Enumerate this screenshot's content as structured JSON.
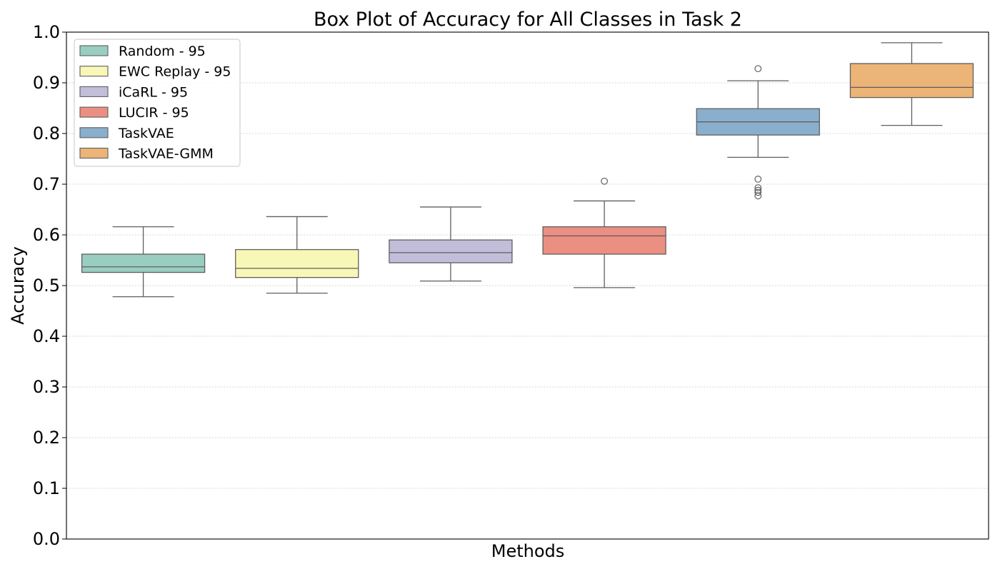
{
  "chart_data": {
    "type": "box",
    "title": "Box Plot of Accuracy for All Classes in Task 2",
    "xlabel": "Methods",
    "ylabel": "Accuracy",
    "ylim": [
      0.0,
      1.0
    ],
    "yticks": [
      "0.0",
      "0.1",
      "0.2",
      "0.3",
      "0.4",
      "0.5",
      "0.6",
      "0.7",
      "0.8",
      "0.9",
      "1.0"
    ],
    "grid": "horizontal-dotted",
    "legend_position": "top-left",
    "series": [
      {
        "name": "Random - 95",
        "color": "#99cdc0",
        "whisker_low": 0.478,
        "q1": 0.526,
        "median": 0.537,
        "q3": 0.562,
        "whisker_high": 0.616,
        "outliers": []
      },
      {
        "name": "EWC Replay - 95",
        "color": "#f8f7b7",
        "whisker_low": 0.485,
        "q1": 0.516,
        "median": 0.534,
        "q3": 0.571,
        "whisker_high": 0.636,
        "outliers": []
      },
      {
        "name": "iCaRL - 95",
        "color": "#c2bed9",
        "whisker_low": 0.509,
        "q1": 0.545,
        "median": 0.565,
        "q3": 0.59,
        "whisker_high": 0.655,
        "outliers": []
      },
      {
        "name": "LUCIR - 95",
        "color": "#ec8f83",
        "whisker_low": 0.496,
        "q1": 0.562,
        "median": 0.598,
        "q3": 0.616,
        "whisker_high": 0.667,
        "outliers": [
          0.706
        ]
      },
      {
        "name": "TaskVAE",
        "color": "#8aafcc",
        "whisker_low": 0.753,
        "q1": 0.797,
        "median": 0.823,
        "q3": 0.849,
        "whisker_high": 0.904,
        "outliers": [
          0.928,
          0.71,
          0.693,
          0.688,
          0.684,
          0.677
        ]
      },
      {
        "name": "TaskVAE-GMM",
        "color": "#ecb476",
        "whisker_low": 0.816,
        "q1": 0.871,
        "median": 0.891,
        "q3": 0.938,
        "whisker_high": 0.979,
        "outliers": []
      }
    ]
  }
}
